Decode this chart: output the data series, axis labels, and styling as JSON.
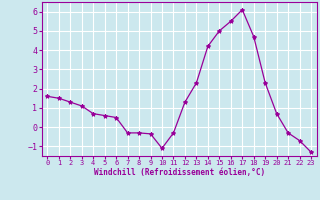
{
  "x": [
    0,
    1,
    2,
    3,
    4,
    5,
    6,
    7,
    8,
    9,
    10,
    11,
    12,
    13,
    14,
    15,
    16,
    17,
    18,
    19,
    20,
    21,
    22,
    23
  ],
  "y": [
    1.6,
    1.5,
    1.3,
    1.1,
    0.7,
    0.6,
    0.5,
    -0.3,
    -0.3,
    -0.35,
    -1.1,
    -0.3,
    1.3,
    2.3,
    4.2,
    5.0,
    5.5,
    6.1,
    4.7,
    2.3,
    0.7,
    -0.3,
    -0.7,
    -1.3
  ],
  "line_color": "#990099",
  "marker": "*",
  "marker_size": 3,
  "background_color": "#cce8ee",
  "grid_color": "#ffffff",
  "xlabel": "Windchill (Refroidissement éolien,°C)",
  "xlabel_color": "#990099",
  "tick_color": "#990099",
  "ylim": [
    -1.5,
    6.5
  ],
  "xlim": [
    -0.5,
    23.5
  ],
  "yticks": [
    -1,
    0,
    1,
    2,
    3,
    4,
    5,
    6
  ],
  "xticks": [
    0,
    1,
    2,
    3,
    4,
    5,
    6,
    7,
    8,
    9,
    10,
    11,
    12,
    13,
    14,
    15,
    16,
    17,
    18,
    19,
    20,
    21,
    22,
    23
  ]
}
